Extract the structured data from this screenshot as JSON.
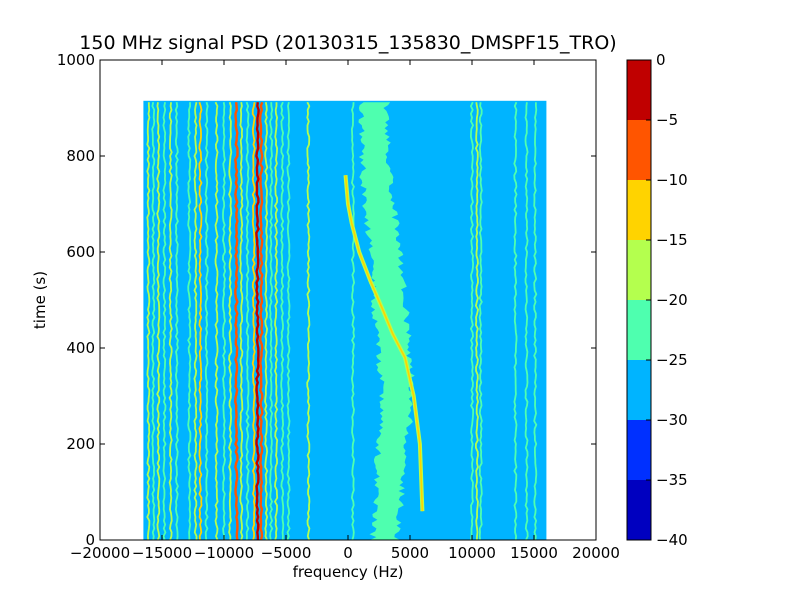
{
  "chart_data": {
    "type": "heatmap",
    "title": "150 MHz signal PSD (20130315_135830_DMSPF15_TRO)",
    "xlabel": "frequency (Hz)",
    "ylabel": "time (s)",
    "xlim": [
      -20000,
      20000
    ],
    "ylim": [
      0,
      1000
    ],
    "x_ticks": [
      -20000,
      -15000,
      -10000,
      -5000,
      0,
      5000,
      10000,
      15000,
      20000
    ],
    "x_tick_labels": [
      "−20000",
      "−15000",
      "−10000",
      "−5000",
      "0",
      "5000",
      "10000",
      "15000",
      "20000"
    ],
    "y_ticks": [
      0,
      200,
      400,
      600,
      800,
      1000
    ],
    "y_tick_labels": [
      "0",
      "200",
      "400",
      "600",
      "800",
      "1000"
    ],
    "data_extent": {
      "x": [
        -16500,
        16000
      ],
      "y": [
        0,
        915
      ]
    },
    "background_level": -27.5,
    "colorbar": {
      "levels": [
        -40,
        -35,
        -30,
        -25,
        -20,
        -15,
        -10,
        -5,
        0
      ],
      "tick_labels": [
        "−40",
        "−35",
        "−30",
        "−25",
        "−20",
        "−15",
        "−10",
        "−5",
        "0"
      ],
      "colors": [
        "#0000c0",
        "#0030ff",
        "#00b4ff",
        "#4effaf",
        "#b4ff4e",
        "#ffd300",
        "#ff5500",
        "#c00000"
      ]
    },
    "vertical_lines": [
      {
        "freq": -16100,
        "level": "yellow-green"
      },
      {
        "freq": -15700,
        "level": "green"
      },
      {
        "freq": -15300,
        "level": "yellow-green"
      },
      {
        "freq": -14800,
        "level": "green"
      },
      {
        "freq": -14300,
        "level": "yellow-green"
      },
      {
        "freq": -13800,
        "level": "green"
      },
      {
        "freq": -12800,
        "level": "green"
      },
      {
        "freq": -12300,
        "level": "yellow-green"
      },
      {
        "freq": -11900,
        "level": "yellow"
      },
      {
        "freq": -11400,
        "level": "green"
      },
      {
        "freq": -10600,
        "level": "yellow-green"
      },
      {
        "freq": -10000,
        "level": "green"
      },
      {
        "freq": -9500,
        "level": "yellow-green"
      },
      {
        "freq": -9000,
        "level": "orange"
      },
      {
        "freq": -8600,
        "level": "yellow-green"
      },
      {
        "freq": -8100,
        "level": "green"
      },
      {
        "freq": -7600,
        "level": "yellow"
      },
      {
        "freq": -7300,
        "level": "red"
      },
      {
        "freq": -7000,
        "level": "orange"
      },
      {
        "freq": -6600,
        "level": "yellow-green"
      },
      {
        "freq": -6200,
        "level": "green"
      },
      {
        "freq": -5800,
        "level": "yellow-green"
      },
      {
        "freq": -5300,
        "level": "green"
      },
      {
        "freq": -4800,
        "level": "green"
      },
      {
        "freq": -3200,
        "level": "yellow-green"
      },
      {
        "freq": 400,
        "level": "green"
      },
      {
        "freq": 10000,
        "level": "green"
      },
      {
        "freq": 10400,
        "level": "yellow-green"
      },
      {
        "freq": 10700,
        "level": "green"
      },
      {
        "freq": 13500,
        "level": "green"
      },
      {
        "freq": 14400,
        "level": "green"
      },
      {
        "freq": 15100,
        "level": "green"
      }
    ],
    "doppler_trace": [
      {
        "t": 60,
        "f": 6000
      },
      {
        "t": 200,
        "f": 5800
      },
      {
        "t": 300,
        "f": 5300
      },
      {
        "t": 380,
        "f": 4600
      },
      {
        "t": 430,
        "f": 3600
      },
      {
        "t": 480,
        "f": 2800
      },
      {
        "t": 540,
        "f": 1800
      },
      {
        "t": 600,
        "f": 900
      },
      {
        "t": 660,
        "f": 300
      },
      {
        "t": 700,
        "f": 0
      },
      {
        "t": 760,
        "f": -200
      }
    ],
    "noise_band": [
      {
        "t": 0,
        "c": 3000,
        "w": 2000
      },
      {
        "t": 150,
        "c": 3400,
        "w": 2200
      },
      {
        "t": 300,
        "c": 4000,
        "w": 2400
      },
      {
        "t": 450,
        "c": 3500,
        "w": 2600
      },
      {
        "t": 600,
        "c": 3000,
        "w": 2400
      },
      {
        "t": 750,
        "c": 2300,
        "w": 2200
      },
      {
        "t": 915,
        "c": 2100,
        "w": 2000
      }
    ]
  }
}
